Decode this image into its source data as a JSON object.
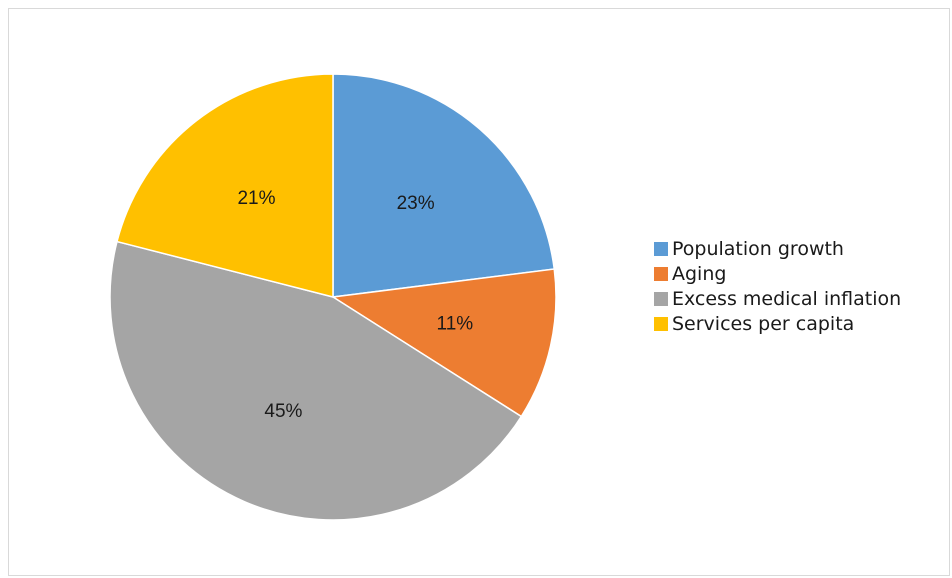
{
  "chart_data": {
    "type": "pie",
    "title": "",
    "legend_position": "right",
    "start_angle_deg": 0,
    "direction": "clockwise",
    "slices": [
      {
        "label": "Population growth",
        "value": 23,
        "display": "23%",
        "color": "#5B9BD5"
      },
      {
        "label": "Aging",
        "value": 11,
        "display": "11%",
        "color": "#ED7D31"
      },
      {
        "label": "Excess medical inflation",
        "value": 45,
        "display": "45%",
        "color": "#A5A5A5"
      },
      {
        "label": "Services per capita",
        "value": 21,
        "display": "21%",
        "color": "#FFC000"
      }
    ]
  }
}
